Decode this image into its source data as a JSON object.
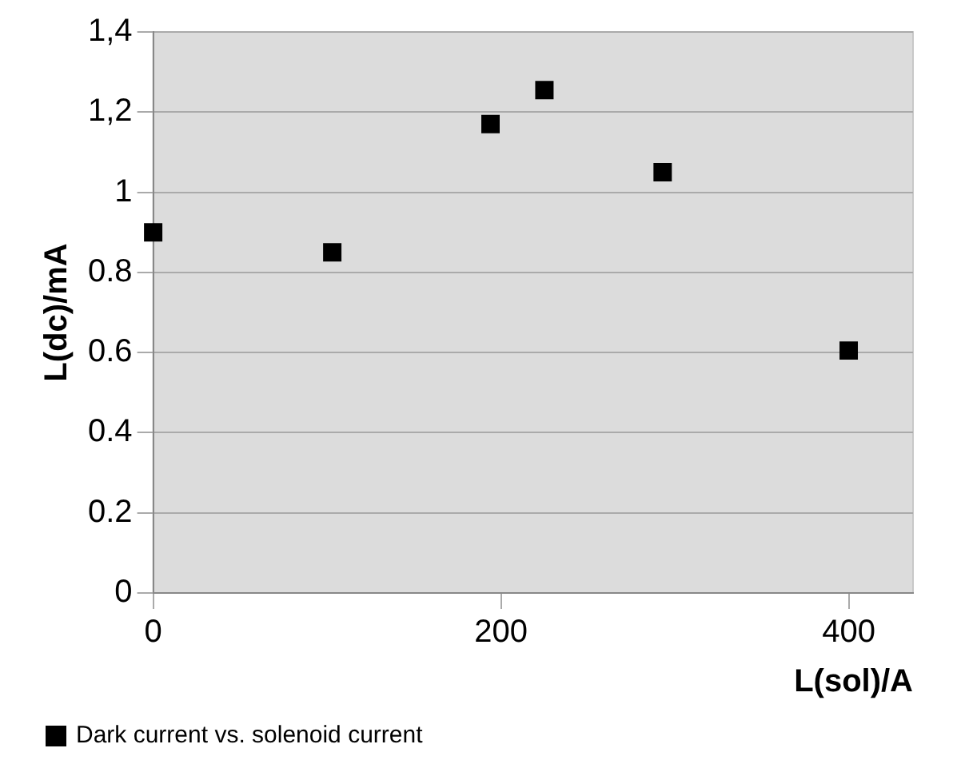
{
  "chart_data": {
    "type": "scatter",
    "xlabel": "L(sol)/A",
    "ylabel": "L(dc)/mA",
    "x": [
      0,
      103,
      194,
      225,
      293,
      400
    ],
    "series": [
      {
        "name": "Dark current vs. solenoid current",
        "color": "#000000",
        "values": [
          0.9,
          0.85,
          1.17,
          1.255,
          1.05,
          0.605
        ]
      }
    ],
    "xlim": [
      0,
      437
    ],
    "xticks": [
      0,
      200,
      400
    ],
    "ylim": [
      0,
      1.4
    ],
    "yticks": [
      0,
      0.2,
      0.4,
      0.6,
      0.8,
      {
        "value": 1,
        "label": "1"
      },
      {
        "value": 1.2,
        "label": "1,2"
      },
      {
        "value": 1.4,
        "label": "1,4"
      }
    ],
    "grid": "y",
    "legend": "bottom left",
    "marker": "square"
  }
}
